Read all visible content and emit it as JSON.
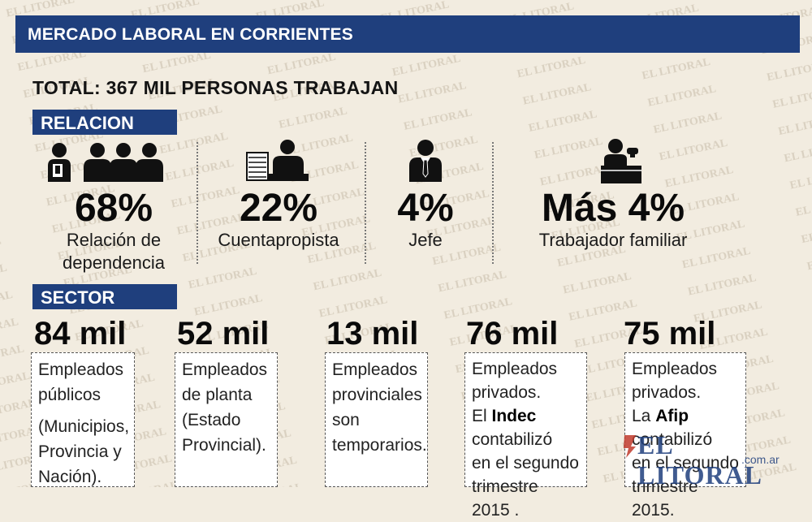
{
  "header": {
    "title": "MERCADO LABORAL EN CORRIENTES"
  },
  "total": "TOTAL: 367 MIL PERSONAS TRABAJAN",
  "watermark": "EL LITORAL",
  "relacion": {
    "tag": "RELACION",
    "items": [
      {
        "value": "68%",
        "label_1": "Relación de",
        "label_2": "dependencia",
        "icon": "employees-icon"
      },
      {
        "value": "22%",
        "label_1": "Cuentapropista",
        "label_2": "",
        "icon": "self-employed-desk-icon"
      },
      {
        "value": "4%",
        "label_1": "Jefe",
        "label_2": "",
        "icon": "boss-icon"
      },
      {
        "value": "Más 4%",
        "label_1": "Trabajador familiar",
        "label_2": "",
        "icon": "family-worker-icon"
      }
    ]
  },
  "sector": {
    "tag": "SECTOR",
    "items": [
      {
        "value": "84 mil",
        "lines": [
          "Empleados",
          "públicos"
        ],
        "lines_2": [
          "(Municipios,",
          "Provincia y",
          "Nación)."
        ]
      },
      {
        "value": "52 mil",
        "lines": [
          "Empleados",
          "de planta",
          "(Estado",
          "Provincial)."
        ]
      },
      {
        "value": "13 mil",
        "lines": [
          "Empleados",
          "provinciales",
          "son",
          "temporarios."
        ]
      },
      {
        "value": "76 mil",
        "lines": [
          "Empleados",
          "privados."
        ],
        "pre": "El ",
        "bold": "Indec",
        "after": [
          "contabilizó",
          "en el segundo",
          "trimestre 2015 ."
        ]
      },
      {
        "value": "75 mil",
        "lines": [
          "Empleados",
          "privados."
        ],
        "pre": "La ",
        "bold": "Afip",
        "after": [
          "contabilizó",
          "en el segundo",
          "trimestre 2015."
        ]
      }
    ]
  },
  "logo": {
    "name": "EL LITORAL",
    "domain": ".com.ar"
  },
  "colors": {
    "navy": "#1f3f7d",
    "background": "#f2ece0"
  }
}
